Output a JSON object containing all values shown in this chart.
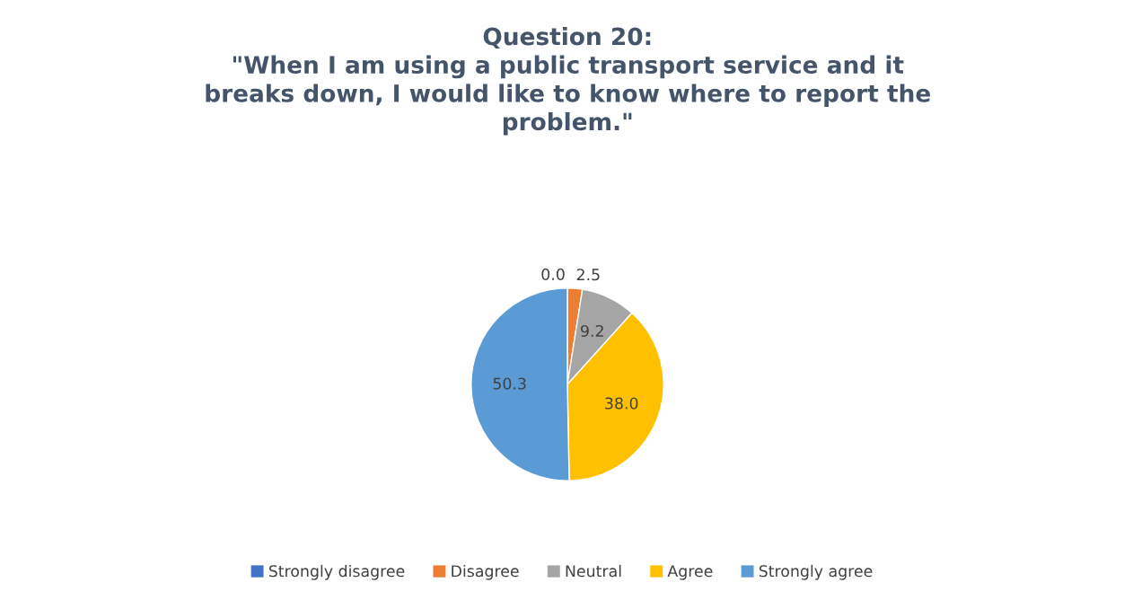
{
  "chart_data": {
    "type": "pie",
    "title": "Question 20:\n\"When I am using a public transport service and it\nbreaks down, I would like to know where to report the\nproblem.\"",
    "categories": [
      "Strongly disagree",
      "Disagree",
      "Neutral",
      "Agree",
      "Strongly agree"
    ],
    "values": [
      0.0,
      2.5,
      9.2,
      38.0,
      50.3
    ],
    "colors": [
      "#4472c4",
      "#ed7d31",
      "#a5a5a5",
      "#ffc000",
      "#5b9bd5"
    ],
    "value_labels": [
      "0.0",
      "2.5",
      "9.2",
      "38.0",
      "50.3"
    ],
    "legend": "bottom"
  }
}
